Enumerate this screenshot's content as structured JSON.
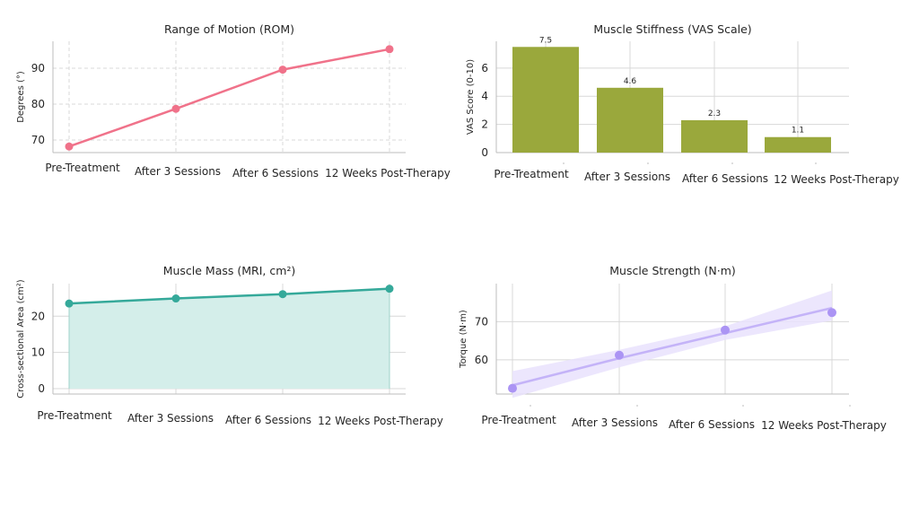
{
  "chart_data": [
    {
      "type": "line",
      "title": "Range of Motion (ROM)",
      "ylabel": "Degrees (°)",
      "categories": [
        "Pre-Treatment",
        "After 3 Sessions",
        "After 6 Sessions",
        "12 Weeks Post-Therapy"
      ],
      "values": [
        68.2,
        78.7,
        89.6,
        95.3
      ],
      "ylim": [
        66.5,
        97.5
      ],
      "yticks": [
        70,
        80,
        90
      ],
      "grid": "dashed",
      "color": "#f0728a"
    },
    {
      "type": "bar",
      "title": "Muscle Stiffness (VAS Scale)",
      "ylabel": "VAS Score (0-10)",
      "categories": [
        "Pre-Treatment",
        "After 3 Sessions",
        "After 6 Sessions",
        "12 Weeks Post-Therapy"
      ],
      "values": [
        7.5,
        4.6,
        2.3,
        1.1
      ],
      "data_labels": [
        "7.5",
        "4.6",
        "2.3",
        "1.1"
      ],
      "ylim": [
        0,
        7.9
      ],
      "yticks": [
        0,
        2,
        4,
        6
      ],
      "grid": "solid",
      "color": "#9aa83c"
    },
    {
      "type": "area",
      "title": "Muscle Mass (MRI, cm²)",
      "ylabel": "Cross-sectional Area (cm²)",
      "categories": [
        "Pre-Treatment",
        "After 3 Sessions",
        "After 6 Sessions",
        "12 Weeks Post-Therapy"
      ],
      "values": [
        23.5,
        24.9,
        26.1,
        27.6
      ],
      "ylim": [
        -1.5,
        29
      ],
      "yticks": [
        0,
        10,
        20
      ],
      "grid": "solid",
      "color": "#35a99a",
      "fill": "#d4eeea"
    },
    {
      "type": "scatter",
      "title": "Muscle Strength (N·m)",
      "ylabel": "Torque (N·m)",
      "categories": [
        "Pre-Treatment",
        "After 3 Sessions",
        "After 6 Sessions",
        "12 Weeks Post-Therapy"
      ],
      "values": [
        52.5,
        61.2,
        67.8,
        72.4
      ],
      "trend": [
        53.3,
        60.4,
        67.0,
        73.6
      ],
      "ci_upper": [
        57.0,
        62.6,
        68.8,
        78.2
      ],
      "ci_lower": [
        50.0,
        58.0,
        65.2,
        70.3
      ],
      "ylim": [
        51,
        80
      ],
      "yticks": [
        60,
        70
      ],
      "grid": "solid",
      "color": "#ab94f4",
      "band": "#e9e2fd"
    }
  ]
}
